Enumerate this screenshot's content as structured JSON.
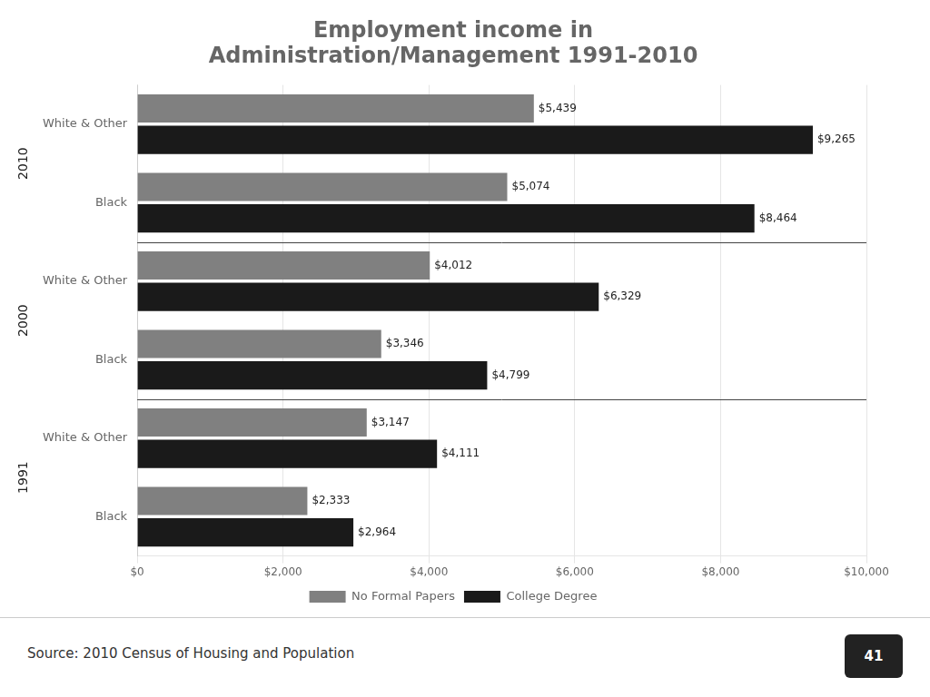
{
  "chart_data": {
    "type": "bar",
    "orientation": "horizontal",
    "title": "Employment income in\nAdministration/Management 1991-2010",
    "categories": [
      "White & Other",
      "Black",
      "White & Other",
      "Black",
      "White & Other",
      "Black"
    ],
    "annotations": [
      "2010",
      "2000",
      "1991"
    ],
    "source": "Source: 2010 Census of Housing and Population",
    "page_number": "41",
    "series": [
      {
        "name": "No Formal Papers",
        "color": "#808080",
        "values": [
          5439,
          5074,
          4012,
          3346,
          3147,
          2333
        ],
        "value_labels": [
          "$5,439",
          "$5,074",
          "$4,012",
          "$3,346",
          "$3,147",
          "$2,333"
        ]
      },
      {
        "name": "College Degree",
        "color": "#1a1a1a",
        "values": [
          9265,
          8464,
          6329,
          4799,
          4111,
          2964
        ],
        "value_labels": [
          "$9,265",
          "$8,464",
          "$6,329",
          "$4,799",
          "$4,111",
          "$2,964"
        ]
      }
    ],
    "xlim": [
      0,
      10000
    ],
    "xticks": [
      {
        "value": 0,
        "label": "$0"
      },
      {
        "value": 2000,
        "label": "$2,000"
      },
      {
        "value": 4000,
        "label": "$4,000"
      },
      {
        "value": 6000,
        "label": "$6,000"
      },
      {
        "value": 8000,
        "label": "$8,000"
      },
      {
        "value": 10000,
        "label": "$10,000"
      }
    ],
    "grid": true,
    "data_labels": true,
    "legend": "bottom"
  }
}
